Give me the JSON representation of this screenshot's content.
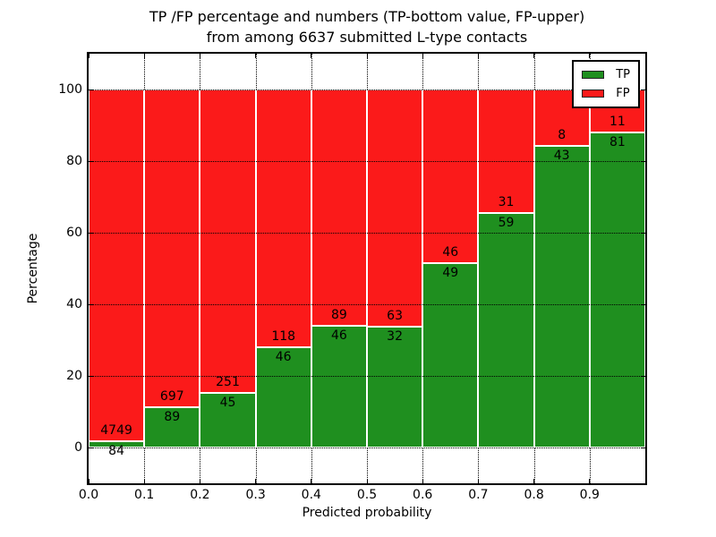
{
  "figure": {
    "title_line1": "TP /FP percentage and numbers (TP-bottom value, FP-upper)",
    "title_line2": "from among 6637 submitted L-type contacts"
  },
  "axes": {
    "xlabel": "Predicted probability",
    "ylabel": "Percentage",
    "x_tick_labels": [
      "0.0",
      "0.1",
      "0.2",
      "0.3",
      "0.4",
      "0.5",
      "0.6",
      "0.7",
      "0.8",
      "0.9"
    ],
    "y_tick_labels": [
      "0",
      "20",
      "40",
      "60",
      "80",
      "100"
    ],
    "y_tick_values": [
      0,
      20,
      40,
      60,
      80,
      100
    ]
  },
  "legend": {
    "items": [
      {
        "label": "TP",
        "color": "#1f8f1f"
      },
      {
        "label": "FP",
        "color": "#fb1a1a"
      }
    ]
  },
  "chart_data": {
    "type": "bar",
    "stacked": true,
    "normalized_to_percent": 100,
    "title": "TP /FP percentage and numbers (TP-bottom value, FP-upper) from among 6637 submitted L-type contacts",
    "xlabel": "Predicted probability",
    "ylabel": "Percentage",
    "xlim": [
      0.0,
      1.0
    ],
    "ylim": [
      -10,
      110
    ],
    "grid": true,
    "legend_position": "upper right",
    "bin_width": 0.1,
    "categories": [
      "0.0-0.1",
      "0.1-0.2",
      "0.2-0.3",
      "0.3-0.4",
      "0.4-0.5",
      "0.5-0.6",
      "0.6-0.7",
      "0.7-0.8",
      "0.8-0.9",
      "0.9-1.0"
    ],
    "series": [
      {
        "name": "TP",
        "color": "#1f8f1f",
        "counts": [
          84,
          89,
          45,
          46,
          46,
          32,
          49,
          59,
          43,
          81
        ]
      },
      {
        "name": "FP",
        "color": "#fb1a1a",
        "counts": [
          4749,
          697,
          251,
          118,
          89,
          63,
          46,
          31,
          8,
          11
        ]
      }
    ],
    "total_contacts": 6637
  }
}
